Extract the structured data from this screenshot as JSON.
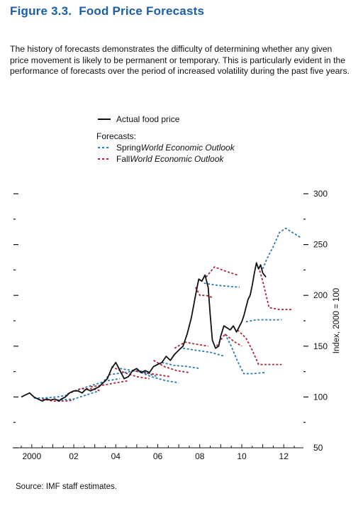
{
  "figure": {
    "number": "Figure 3.3.",
    "title": "Food Price Forecasts",
    "description": "The history of forecasts demonstrates the difficulty of determining whether any given price movement is likely to be permanent or temporary. This is particularly evident in the performance of forecasts over the period of increased volatility during the past five years.",
    "source": "Source: IMF staff estimates."
  },
  "legend": {
    "actual": "Actual food price",
    "forecasts_heading": "Forecasts:",
    "spring_prefix": "Spring ",
    "spring_italic": "World Economic Outlook",
    "fall_prefix": "Fall ",
    "fall_italic": "World Economic Outlook"
  },
  "colors": {
    "actual": "#111111",
    "spring": "#2a7ab8",
    "fall": "#b0243a",
    "title": "#1a5fa8"
  },
  "chart_data": {
    "type": "line",
    "ylabel": "Index, 2000 = 100",
    "xlim": [
      1999.5,
      2012.6
    ],
    "ylim": [
      50,
      300
    ],
    "yticks": [
      50,
      100,
      150,
      200,
      250,
      300
    ],
    "xticks": [
      {
        "value": 2000,
        "label": "2000"
      },
      {
        "value": 2002,
        "label": "02"
      },
      {
        "value": 2004,
        "label": "04"
      },
      {
        "value": 2006,
        "label": "06"
      },
      {
        "value": 2008,
        "label": "08"
      },
      {
        "value": 2010,
        "label": "10"
      },
      {
        "value": 2012,
        "label": "12"
      }
    ],
    "grid": false,
    "series": [
      {
        "name": "Actual food price",
        "style": "solid",
        "points": [
          [
            1999.5,
            100
          ],
          [
            1999.7,
            102
          ],
          [
            1999.9,
            104
          ],
          [
            2000.1,
            100
          ],
          [
            2000.3,
            98
          ],
          [
            2000.5,
            96
          ],
          [
            2000.7,
            98
          ],
          [
            2000.9,
            97
          ],
          [
            2001.1,
            98
          ],
          [
            2001.3,
            96
          ],
          [
            2001.4,
            98
          ],
          [
            2001.6,
            100
          ],
          [
            2001.8,
            104
          ],
          [
            2002.0,
            106
          ],
          [
            2002.2,
            106
          ],
          [
            2002.4,
            104
          ],
          [
            2002.6,
            108
          ],
          [
            2002.8,
            106
          ],
          [
            2003.0,
            108
          ],
          [
            2003.2,
            110
          ],
          [
            2003.4,
            114
          ],
          [
            2003.6,
            118
          ],
          [
            2003.8,
            128
          ],
          [
            2004.0,
            134
          ],
          [
            2004.2,
            126
          ],
          [
            2004.4,
            118
          ],
          [
            2004.6,
            120
          ],
          [
            2004.8,
            126
          ],
          [
            2005.0,
            128
          ],
          [
            2005.2,
            124
          ],
          [
            2005.4,
            126
          ],
          [
            2005.6,
            124
          ],
          [
            2005.8,
            130
          ],
          [
            2006.0,
            132
          ],
          [
            2006.2,
            134
          ],
          [
            2006.4,
            140
          ],
          [
            2006.6,
            136
          ],
          [
            2006.8,
            142
          ],
          [
            2007.0,
            146
          ],
          [
            2007.2,
            150
          ],
          [
            2007.4,
            162
          ],
          [
            2007.6,
            178
          ],
          [
            2007.8,
            200
          ],
          [
            2007.95,
            216
          ],
          [
            2008.1,
            214
          ],
          [
            2008.25,
            220
          ],
          [
            2008.4,
            208
          ],
          [
            2008.5,
            180
          ],
          [
            2008.6,
            156
          ],
          [
            2008.75,
            148
          ],
          [
            2008.9,
            150
          ],
          [
            2009.0,
            160
          ],
          [
            2009.15,
            170
          ],
          [
            2009.3,
            168
          ],
          [
            2009.45,
            166
          ],
          [
            2009.6,
            170
          ],
          [
            2009.75,
            164
          ],
          [
            2009.9,
            170
          ],
          [
            2010.0,
            174
          ],
          [
            2010.1,
            180
          ],
          [
            2010.2,
            188
          ],
          [
            2010.3,
            196
          ],
          [
            2010.4,
            200
          ],
          [
            2010.5,
            210
          ],
          [
            2010.6,
            222
          ],
          [
            2010.7,
            232
          ],
          [
            2010.8,
            226
          ],
          [
            2010.9,
            230
          ],
          [
            2011.0,
            222
          ],
          [
            2011.15,
            218
          ]
        ]
      },
      {
        "name": "Spring WEO forecasts",
        "style": "dashed",
        "segments": [
          [
            [
              2000.1,
              99
            ],
            [
              2000.6,
              99
            ],
            [
              2001.2,
              100
            ],
            [
              2001.7,
              102
            ]
          ],
          [
            [
              2001.2,
              97
            ],
            [
              2002.0,
              98
            ],
            [
              2002.6,
              102
            ],
            [
              2003.2,
              106
            ]
          ],
          [
            [
              2002.2,
              107
            ],
            [
              2002.8,
              111
            ],
            [
              2003.6,
              116
            ],
            [
              2004.2,
              118
            ]
          ],
          [
            [
              2003.2,
              110
            ],
            [
              2003.7,
              122
            ],
            [
              2004.4,
              124
            ],
            [
              2005.0,
              126
            ],
            [
              2005.6,
              124
            ]
          ],
          [
            [
              2004.2,
              128
            ],
            [
              2004.8,
              126
            ],
            [
              2005.4,
              124
            ],
            [
              2006.0,
              120
            ]
          ],
          [
            [
              2005.2,
              124
            ],
            [
              2005.7,
              120
            ],
            [
              2006.4,
              116
            ],
            [
              2007.0,
              114
            ]
          ],
          [
            [
              2006.2,
              134
            ],
            [
              2006.8,
              131
            ],
            [
              2007.4,
              130
            ],
            [
              2008.0,
              128
            ]
          ],
          [
            [
              2007.2,
              148
            ],
            [
              2007.8,
              146
            ],
            [
              2008.5,
              144
            ],
            [
              2009.2,
              140
            ]
          ],
          [
            [
              2008.2,
              212
            ],
            [
              2008.8,
              210
            ],
            [
              2009.3,
              209
            ],
            [
              2009.9,
              208
            ]
          ],
          [
            [
              2009.2,
              162
            ],
            [
              2009.5,
              150
            ],
            [
              2009.8,
              135
            ],
            [
              2010.1,
              123
            ],
            [
              2010.5,
              123
            ],
            [
              2011.1,
              124
            ]
          ],
          [
            [
              2010.2,
              174
            ],
            [
              2010.7,
              176
            ],
            [
              2011.3,
              176
            ],
            [
              2011.9,
              176
            ]
          ],
          [
            [
              2011.0,
              226
            ],
            [
              2011.2,
              236
            ],
            [
              2011.5,
              248
            ],
            [
              2011.8,
              262
            ],
            [
              2012.1,
              266
            ],
            [
              2012.4,
              262
            ],
            [
              2012.8,
              257
            ]
          ]
        ]
      },
      {
        "name": "Fall WEO forecasts",
        "style": "dashed",
        "segments": [
          [
            [
              2000.5,
              98
            ],
            [
              2001.0,
              96
            ],
            [
              2001.6,
              96
            ],
            [
              2002.0,
              97
            ]
          ],
          [
            [
              2001.7,
              103
            ],
            [
              2002.3,
              108
            ],
            [
              2002.9,
              108
            ],
            [
              2003.3,
              106
            ]
          ],
          [
            [
              2002.8,
              110
            ],
            [
              2003.5,
              112
            ],
            [
              2004.0,
              114
            ],
            [
              2004.6,
              116
            ]
          ],
          [
            [
              2003.8,
              130
            ],
            [
              2004.4,
              124
            ],
            [
              2005.0,
              120
            ],
            [
              2005.6,
              118
            ]
          ],
          [
            [
              2004.8,
              126
            ],
            [
              2005.3,
              124
            ],
            [
              2006.0,
              122
            ],
            [
              2006.6,
              120
            ]
          ],
          [
            [
              2005.8,
              136
            ],
            [
              2006.3,
              130
            ],
            [
              2006.9,
              126
            ],
            [
              2007.5,
              124
            ]
          ],
          [
            [
              2006.8,
              148
            ],
            [
              2007.3,
              154
            ],
            [
              2007.8,
              152
            ],
            [
              2008.4,
              150
            ]
          ],
          [
            [
              2007.8,
              208
            ],
            [
              2008.0,
              200
            ],
            [
              2008.3,
              200
            ],
            [
              2008.6,
              198
            ]
          ],
          [
            [
              2008.3,
              218
            ],
            [
              2008.7,
              228
            ],
            [
              2009.2,
              224
            ],
            [
              2009.8,
              220
            ]
          ],
          [
            [
              2008.8,
              150
            ],
            [
              2009.2,
              162
            ],
            [
              2009.6,
              155
            ],
            [
              2010.0,
              150
            ]
          ],
          [
            [
              2009.8,
              166
            ],
            [
              2010.2,
              158
            ],
            [
              2010.5,
              146
            ],
            [
              2010.8,
              132
            ],
            [
              2011.3,
              132
            ],
            [
              2011.9,
              132
            ]
          ],
          [
            [
              2010.8,
              228
            ],
            [
              2011.0,
              214
            ],
            [
              2011.3,
              188
            ],
            [
              2011.8,
              186
            ],
            [
              2012.4,
              186
            ]
          ]
        ]
      }
    ]
  }
}
